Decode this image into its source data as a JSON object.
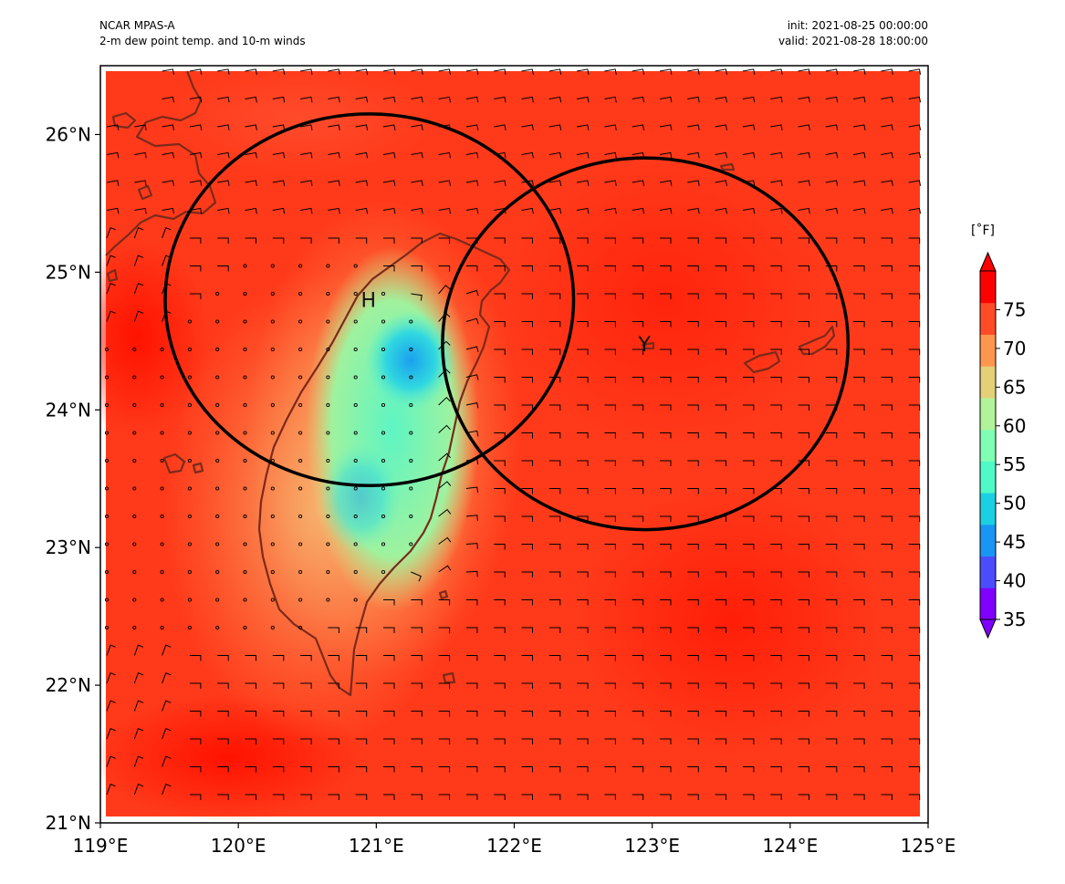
{
  "header": {
    "model": "NCAR MPAS-A",
    "field": "2-m dew point temp. and 10-m winds",
    "init": "init: 2021-08-25 00:00:00",
    "valid": "valid: 2021-08-28 18:00:00"
  },
  "map": {
    "region": "Taiwan",
    "lon_range": [
      119,
      125
    ],
    "lat_range": [
      21,
      26.5
    ],
    "background_color": "#ff3a1a",
    "coastline_color": "#7a2a1a",
    "lon_ticks": [
      {
        "value": 119,
        "label": "119°E"
      },
      {
        "value": 120,
        "label": "120°E"
      },
      {
        "value": 121,
        "label": "121°E"
      },
      {
        "value": 122,
        "label": "122°E"
      },
      {
        "value": 123,
        "label": "123°E"
      },
      {
        "value": 124,
        "label": "124°E"
      },
      {
        "value": 125,
        "label": "125°E"
      }
    ],
    "lat_ticks": [
      {
        "value": 21,
        "label": "21°N"
      },
      {
        "value": 22,
        "label": "22°N"
      },
      {
        "value": 23,
        "label": "23°N"
      },
      {
        "value": 24,
        "label": "24°N"
      },
      {
        "value": 25,
        "label": "25°N"
      },
      {
        "value": 26,
        "label": "26°N"
      }
    ],
    "circles": [
      {
        "label": "H",
        "center_lon": 120.95,
        "center_lat": 24.8,
        "radius_deg_lon": 1.48,
        "radius_deg_lat": 1.35
      },
      {
        "label": "Y",
        "center_lon": 122.95,
        "center_lat": 24.48,
        "radius_deg_lon": 1.47,
        "radius_deg_lat": 1.35
      }
    ]
  },
  "colorbar": {
    "unit": "[˚F]",
    "min": 35,
    "max": 80,
    "tick_values": [
      35,
      40,
      45,
      50,
      55,
      60,
      65,
      70,
      75
    ],
    "tick_labels": [
      "35",
      "40",
      "45",
      "50",
      "55",
      "60",
      "65",
      "70",
      "75"
    ],
    "colors": [
      "#7f00ff",
      "#4b4dfd",
      "#1996f3",
      "#1cd0e3",
      "#4efac8",
      "#80ffb4",
      "#b2f39a",
      "#e4d077",
      "#ff964f",
      "#ff4c27",
      "#ff0000"
    ]
  }
}
